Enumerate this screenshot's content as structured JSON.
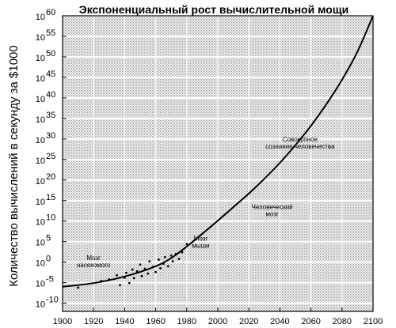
{
  "chart_data": {
    "type": "scatter",
    "title": "Экспоненциальный рост вычислительной мощи",
    "xlabel": "",
    "ylabel": "Количество вычислений в секунду за $1000",
    "x_ticks": [
      "1900",
      "1920",
      "1940",
      "1960",
      "1980",
      "2000",
      "2020",
      "2040",
      "2060",
      "2080",
      "2100"
    ],
    "y_ticks": [
      {
        "base": "10",
        "exp": "60"
      },
      {
        "base": "10",
        "exp": "55"
      },
      {
        "base": "10",
        "exp": "50"
      },
      {
        "base": "10",
        "exp": "45"
      },
      {
        "base": "10",
        "exp": "40"
      },
      {
        "base": "10",
        "exp": "35"
      },
      {
        "base": "10",
        "exp": "30"
      },
      {
        "base": "10",
        "exp": "25"
      },
      {
        "base": "10",
        "exp": "20"
      },
      {
        "base": "10",
        "exp": "15"
      },
      {
        "base": "10",
        "exp": "10"
      },
      {
        "base": "10",
        "exp": "5"
      },
      {
        "base": "10",
        "exp": "0"
      },
      {
        "base": "10",
        "exp": "-5"
      },
      {
        "base": "10",
        "exp": "-10"
      }
    ],
    "xlim": [
      1900,
      2100
    ],
    "ylim_log10": [
      -12,
      60
    ],
    "y_scale": "log",
    "grid": true,
    "series": [
      {
        "kind": "curve",
        "points": [
          {
            "x": 1900,
            "y": -6
          },
          {
            "x": 1920,
            "y": -5.1
          },
          {
            "x": 1940,
            "y": -3.5
          },
          {
            "x": 1960,
            "y": -1
          },
          {
            "x": 1970,
            "y": 1
          },
          {
            "x": 1980,
            "y": 3.8
          },
          {
            "x": 1990,
            "y": 6.9
          },
          {
            "x": 2000,
            "y": 10.1
          },
          {
            "x": 2010,
            "y": 13.4
          },
          {
            "x": 2020,
            "y": 16.7
          },
          {
            "x": 2030,
            "y": 20.3
          },
          {
            "x": 2040,
            "y": 24.2
          },
          {
            "x": 2050,
            "y": 28.5
          },
          {
            "x": 2060,
            "y": 33.2
          },
          {
            "x": 2070,
            "y": 38.5
          },
          {
            "x": 2080,
            "y": 44.4
          },
          {
            "x": 2090,
            "y": 51.3
          },
          {
            "x": 2100,
            "y": 60
          }
        ]
      },
      {
        "kind": "scatter",
        "points": [
          {
            "x": 1910,
            "y": -6.2
          },
          {
            "x": 1925,
            "y": -4.6
          },
          {
            "x": 1930,
            "y": -4.2
          },
          {
            "x": 1935,
            "y": -3.2
          },
          {
            "x": 1937,
            "y": -5.6
          },
          {
            "x": 1940,
            "y": -3.8
          },
          {
            "x": 1941,
            "y": -2.6
          },
          {
            "x": 1943,
            "y": -5.1
          },
          {
            "x": 1945,
            "y": -1.8
          },
          {
            "x": 1946,
            "y": -3.9
          },
          {
            "x": 1948,
            "y": -2.2
          },
          {
            "x": 1950,
            "y": -0.6
          },
          {
            "x": 1951,
            "y": -3.4
          },
          {
            "x": 1953,
            "y": -1.6
          },
          {
            "x": 1955,
            "y": -2.8
          },
          {
            "x": 1956,
            "y": 0.2
          },
          {
            "x": 1958,
            "y": -1.2
          },
          {
            "x": 1960,
            "y": -2.4
          },
          {
            "x": 1962,
            "y": 0.6
          },
          {
            "x": 1963,
            "y": -1.5
          },
          {
            "x": 1965,
            "y": -0.4
          },
          {
            "x": 1966,
            "y": 1.2
          },
          {
            "x": 1968,
            "y": -1.0
          },
          {
            "x": 1970,
            "y": 1.6
          },
          {
            "x": 1971,
            "y": 0.2
          },
          {
            "x": 1973,
            "y": 2.0
          },
          {
            "x": 1975,
            "y": 0.8
          },
          {
            "x": 1977,
            "y": 2.4
          },
          {
            "x": 1980,
            "y": 4.4
          }
        ]
      }
    ],
    "annotations": [
      {
        "lines": [
          "Мозг",
          "насекомого"
        ],
        "x": 1920,
        "y": 0.5
      },
      {
        "lines": [
          "Мозг",
          "мыши"
        ],
        "x": 1989,
        "y": 5.2
      },
      {
        "lines": [
          "Человеческий",
          "мозг"
        ],
        "x": 2035,
        "y": 12.9
      },
      {
        "lines": [
          "Совокупное",
          "сознание человечества"
        ],
        "x": 2053,
        "y": 29.4
      }
    ]
  }
}
